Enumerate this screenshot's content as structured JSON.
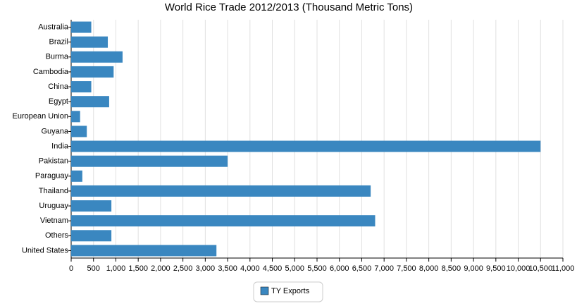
{
  "chart_data": {
    "type": "hbar",
    "title": "World Rice Trade 2012/2013 (Thousand Metric Tons)",
    "categories": [
      "Australia",
      "Brazil",
      "Burma",
      "Cambodia",
      "China",
      "Egypt",
      "European Union",
      "Guyana",
      "India",
      "Pakistan",
      "Paraguay",
      "Thailand",
      "Uruguay",
      "Vietnam",
      "Others",
      "United States"
    ],
    "series": [
      {
        "name": "TY Exports",
        "color": "#3a87c0",
        "values": [
          450,
          820,
          1150,
          950,
          450,
          850,
          200,
          350,
          10500,
          3500,
          250,
          6700,
          900,
          6800,
          900,
          3250
        ]
      }
    ],
    "xlim": [
      0,
      11000
    ],
    "xticks": [
      0,
      500,
      {
        "value": 1000,
        "label": "1,000"
      },
      {
        "value": 1500,
        "label": "1,500"
      },
      {
        "value": 2000,
        "label": "2,000"
      },
      {
        "value": 2500,
        "label": "2,500"
      },
      {
        "value": 3000,
        "label": "3,000"
      },
      {
        "value": 3500,
        "label": "3,500"
      },
      {
        "value": 4000,
        "label": "4,000"
      },
      {
        "value": 4500,
        "label": "4,500"
      },
      {
        "value": 5000,
        "label": "5,000"
      },
      {
        "value": 5500,
        "label": "5,500"
      },
      {
        "value": 6000,
        "label": "6,000"
      },
      {
        "value": 6500,
        "label": "6,500"
      },
      {
        "value": 7000,
        "label": "7,000"
      },
      {
        "value": 7500,
        "label": "7,500"
      },
      {
        "value": 8000,
        "label": "8,000"
      },
      {
        "value": 8500,
        "label": "8,500"
      },
      {
        "value": 9000,
        "label": "9,000"
      },
      {
        "value": 9500,
        "label": "9,500"
      },
      {
        "value": 10000,
        "label": "10,000"
      },
      {
        "value": 10500,
        "label": "10,500"
      },
      {
        "value": 11000,
        "label": "11,000"
      }
    ],
    "grid": true,
    "legend": "bottom"
  }
}
